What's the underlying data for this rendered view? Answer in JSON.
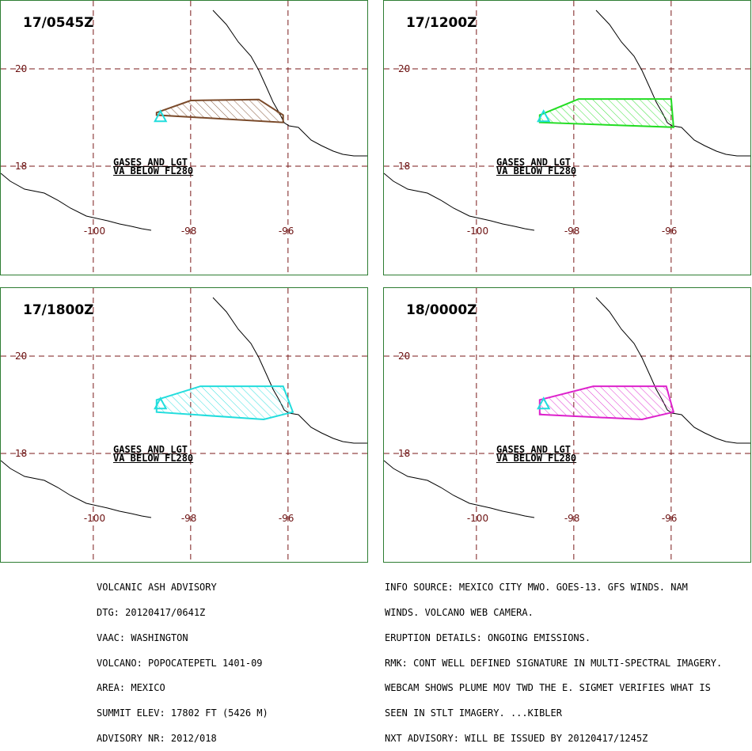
{
  "panels": [
    {
      "time": "17/0545Z",
      "line1": "GASES AND LGT",
      "line2": "VA BELOW FL280",
      "stroke": "#7a4a2a",
      "hatch": "#7a4a2a",
      "polygon": [
        [
          -98.7,
          19.1
        ],
        [
          -98.0,
          19.35
        ],
        [
          -96.6,
          19.37
        ],
        [
          -96.1,
          19.05
        ],
        [
          -96.1,
          18.9
        ],
        [
          -98.7,
          19.05
        ]
      ]
    },
    {
      "time": "17/1200Z",
      "line1": "GASES AND LGT",
      "line2": "VA BELOW FL280",
      "stroke": "#22dd22",
      "hatch": "#22dd22",
      "polygon": [
        [
          -98.7,
          19.05
        ],
        [
          -97.9,
          19.38
        ],
        [
          -96.0,
          19.38
        ],
        [
          -95.95,
          18.8
        ],
        [
          -98.7,
          18.9
        ]
      ]
    },
    {
      "time": "17/1800Z",
      "line1": "GASES AND LGT",
      "line2": "VA BELOW FL280",
      "stroke": "#22dddd",
      "hatch": "#22dddd",
      "polygon": [
        [
          -98.7,
          19.1
        ],
        [
          -97.8,
          19.38
        ],
        [
          -96.1,
          19.38
        ],
        [
          -95.9,
          18.85
        ],
        [
          -96.5,
          18.7
        ],
        [
          -98.7,
          18.85
        ]
      ]
    },
    {
      "time": "18/0000Z",
      "line1": "GASES AND LGT",
      "line2": "VA BELOW FL280",
      "stroke": "#dd22cc",
      "hatch": "#dd22cc",
      "polygon": [
        [
          -98.7,
          19.1
        ],
        [
          -97.6,
          19.38
        ],
        [
          -96.1,
          19.38
        ],
        [
          -95.95,
          18.85
        ],
        [
          -96.6,
          18.7
        ],
        [
          -98.7,
          18.8
        ]
      ]
    }
  ],
  "axes": {
    "lat_labels": [
      "20",
      "18"
    ],
    "lon_labels": [
      "-100",
      "-98",
      "-96"
    ],
    "lats": [
      20,
      18
    ],
    "lons": [
      -100,
      -98,
      -96
    ]
  },
  "volcano": {
    "lon": -98.62,
    "lat": 19.02,
    "color": "#22dddd"
  },
  "advisory_left": [
    "VOLCANIC ASH ADVISORY",
    "DTG: 20120417/0641Z",
    "VAAC: WASHINGTON",
    "VOLCANO: POPOCATEPETL 1401-09",
    "AREA: MEXICO",
    "SUMMIT ELEV: 17802 FT (5426 M)",
    "ADVISORY NR: 2012/018"
  ],
  "advisory_right": [
    "INFO SOURCE: MEXICO CITY MWO. GOES-13. GFS WINDS. NAM",
    "WINDS. VOLCANO WEB CAMERA.",
    "ERUPTION DETAILS: ONGOING EMISSIONS.",
    "RMK: CONT WELL DEFINED SIGNATURE IN MULTI-SPECTRAL IMAGERY.",
    "WEBCAM SHOWS PLUME MOV TWD THE E. SIGMET VERIFIES WHAT IS",
    "SEEN IN STLT IMAGERY. ...KIBLER",
    "NXT ADVISORY: WILL BE ISSUED BY 20120417/1245Z"
  ]
}
